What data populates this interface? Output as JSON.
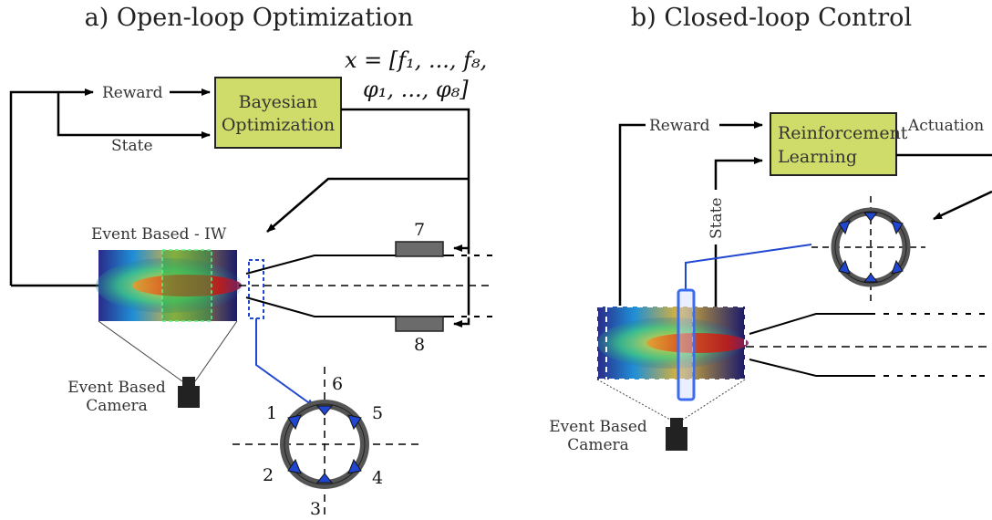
{
  "panel_a": {
    "title": "a) Open-loop Optimization",
    "reward_label": "Reward",
    "state_label": "State",
    "optimizer": {
      "line1": "Bayesian",
      "line2": "Optimization"
    },
    "vector_line1": "x = [f₁, ..., f₈,",
    "vector_line2": "φ₁, ..., φ₈]",
    "window_label": "Event Based - IW",
    "camera_line1": "Event Based",
    "camera_line2": "Camera",
    "actuator_top": "7",
    "actuator_bottom": "8",
    "ring_labels": [
      "1",
      "2",
      "3",
      "4",
      "5",
      "6"
    ]
  },
  "panel_b": {
    "title": "b) Closed-loop Control",
    "reward_label": "Reward",
    "state_label": "State",
    "controller": {
      "line1": "Reinforcement",
      "line2": "Learning"
    },
    "actuation_label": "Actuation",
    "camera_line1": "Event Based",
    "camera_line2": "Camera"
  },
  "colors": {
    "box_fill": "#cfdc6a",
    "box_stroke": "#222222",
    "accent_blue": "#2146d0",
    "actuator_gray": "#6b6b6b",
    "window_green": "#22aa44"
  }
}
